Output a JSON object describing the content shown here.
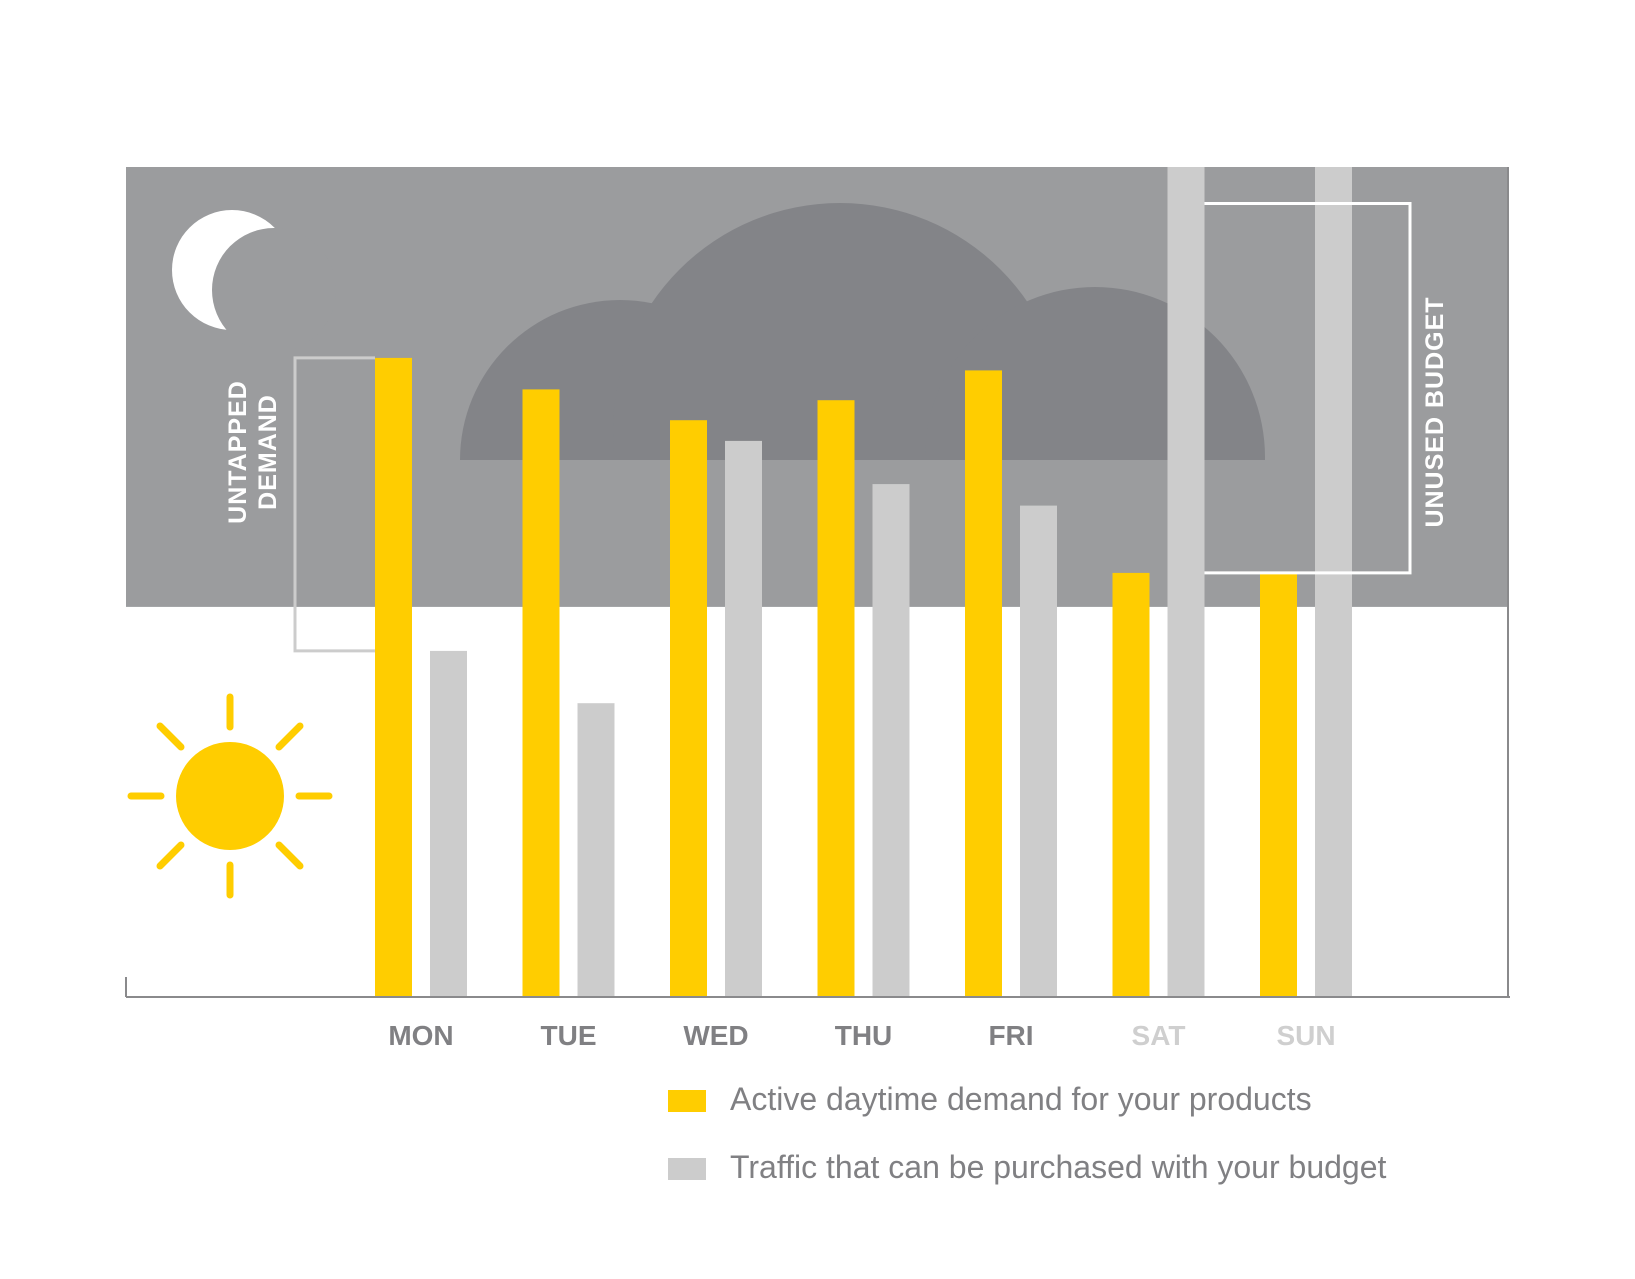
{
  "colors": {
    "night_band": "#9b9c9e",
    "cloud": "#838488",
    "demand": "#ffcd00",
    "traffic": "#cccccc",
    "axis": "#8a8a8c",
    "weekday_label": "#808083",
    "weekend_label": "#cfcfcf",
    "legend_text": "#808083"
  },
  "icons": {
    "night": "moon-icon",
    "day": "sun-icon",
    "background": "cloud-icon"
  },
  "chart_data": {
    "type": "bar",
    "categories": [
      "MON",
      "TUE",
      "WED",
      "THU",
      "FRI",
      "SAT",
      "SUN"
    ],
    "weekend": [
      false,
      false,
      false,
      false,
      false,
      true,
      true
    ],
    "series": [
      {
        "key": "demand",
        "name": "Active daytime demand for your products",
        "values": [
          77,
          73.2,
          69.5,
          71.9,
          75.5,
          51.1,
          51.1
        ]
      },
      {
        "key": "traffic",
        "name": "Traffic that can be purchased with your budget",
        "values": [
          41.7,
          35.4,
          67,
          61.8,
          59.2,
          100,
          100
        ]
      }
    ],
    "ylim": [
      0,
      100
    ],
    "day_night_boundary": 47,
    "legend": "bottom-right",
    "grid": false,
    "annotations": [
      {
        "key": "untapped",
        "lines": [
          "UNTAPPED",
          "DEMAND"
        ],
        "category": "MON",
        "from": 41.7,
        "to": 77
      },
      {
        "key": "unused",
        "lines": [
          "UNUSED BUDGET"
        ],
        "categories": [
          "SAT",
          "SUN"
        ],
        "from": 51.1,
        "to": 95.6
      }
    ]
  }
}
